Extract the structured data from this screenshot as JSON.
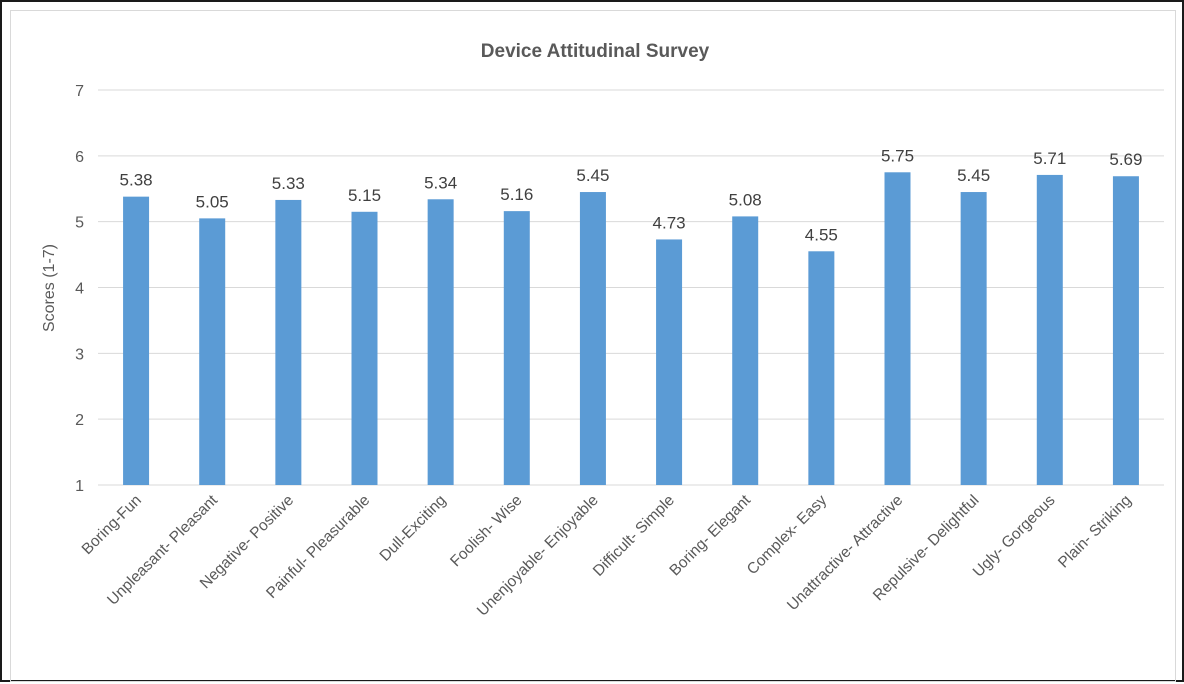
{
  "chart_data": {
    "type": "bar",
    "title": "Device Attitudinal Survey",
    "xlabel": "",
    "ylabel": "Scores (1-7)",
    "ylim": [
      1,
      7
    ],
    "yticks": [
      1,
      2,
      3,
      4,
      5,
      6,
      7
    ],
    "grid": true,
    "bar_color": "#5b9bd5",
    "grid_color": "#d9d9d9",
    "categories": [
      "Boring-Fun",
      "Unpleasant- Pleasant",
      "Negative- Positive",
      "Painful- Pleasurable",
      "Dull-Exciting",
      "Foolish- Wise",
      "Unenjoyable- Enjoyable",
      "Difficult- Simple",
      "Boring- Elegant",
      "Complex- Easy",
      "Unattractive- Attractive",
      "Repulsive- Delightful",
      "Ugly- Gorgeous",
      "Plain- Striking"
    ],
    "values": [
      5.38,
      5.05,
      5.33,
      5.15,
      5.34,
      5.16,
      5.45,
      4.73,
      5.08,
      4.55,
      5.75,
      5.45,
      5.71,
      5.69
    ],
    "data_labels": [
      "5.38",
      "5.05",
      "5.33",
      "5.15",
      "5.34",
      "5.16",
      "5.45",
      "4.73",
      "5.08",
      "4.55",
      "5.75",
      "5.45",
      "5.71",
      "5.69"
    ]
  }
}
